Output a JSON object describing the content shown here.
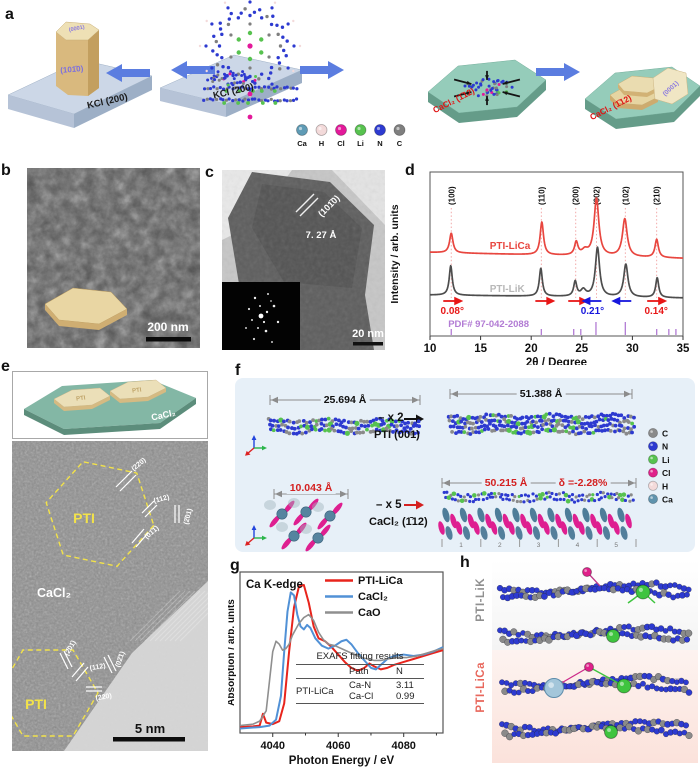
{
  "panels": {
    "a": {
      "label": "a",
      "prism_top_face": "(0001)",
      "prism_side_face": "(101̄0)",
      "substrate1_label": "KCl (200)",
      "substrate2_label": "KCl (200)",
      "hex1_label": "CaCl₂ (1̄12)",
      "hex2_label": "CaCl₂ (1̄12)",
      "plate_face_label": "(0001)",
      "legend": [
        {
          "symbol": "Ca",
          "color": "#5f9bb5"
        },
        {
          "symbol": "H",
          "color": "#f3dada"
        },
        {
          "symbol": "Cl",
          "color": "#e3199a"
        },
        {
          "symbol": "Li",
          "color": "#57c24f"
        },
        {
          "symbol": "N",
          "color": "#2d3ad0"
        },
        {
          "symbol": "C",
          "color": "#7f7f7f"
        }
      ]
    },
    "b": {
      "label": "b",
      "scalebar": "200 nm"
    },
    "c": {
      "label": "c",
      "plane": "(101̄0)",
      "spacing": "7. 27 Å",
      "scalebar": "20 nm"
    },
    "d": {
      "label": "d"
    },
    "e": {
      "label": "e",
      "inset_substrate": "CaCl₂",
      "inset_chip": "PTI",
      "region_top": "PTI",
      "region_mid": "CaCl₂",
      "region_bottom": "PTI",
      "planes_top": [
        "(220)",
        "(112)",
        "(2̄01)",
        "(01̄1̄)"
      ],
      "planes_bottom": [
        "(2̄01̄)",
        "(112)",
        "(02̄1)",
        "(220)"
      ],
      "scalebar": "5 nm"
    },
    "f": {
      "label": "f",
      "dim_pti_small": "25.694 Å",
      "pti_multiply": "– x 2",
      "pti_plane": "PTI (001)",
      "dim_pti_large": "51.388 Å",
      "dim_cacl2_small": "10.043 Å",
      "cacl2_multiply": "– x 5",
      "cacl2_plane": "CaCl₂ (1̄12)",
      "dim_cacl2_large": "50.215 Å",
      "mismatch": "δ =-2.28%",
      "unit_numbers": [
        "1",
        "2",
        "3",
        "4",
        "5"
      ],
      "legend": [
        {
          "symbol": "C",
          "color": "#8a8a8a"
        },
        {
          "symbol": "N",
          "color": "#2d3ad0"
        },
        {
          "symbol": "Li",
          "color": "#57c24f"
        },
        {
          "symbol": "Cl",
          "color": "#e0218a"
        },
        {
          "symbol": "H",
          "color": "#f3dada"
        },
        {
          "symbol": "Ca",
          "color": "#5f93ad"
        }
      ]
    },
    "g": {
      "label": "g"
    },
    "h": {
      "label": "h",
      "structure_top": "PTI-LiK",
      "structure_bottom": "PTI-LiCa"
    }
  },
  "chart_data": [
    {
      "id": "xrd-pattern",
      "type": "line",
      "title": "",
      "xlabel": "2θ / Degree",
      "ylabel": "Intensity / arb. units",
      "xlim": [
        10,
        35
      ],
      "xticks": [
        10,
        15,
        20,
        25,
        30,
        35
      ],
      "grid": false,
      "legend_position": "on-curve",
      "peak_labels": [
        "(100)",
        "(110)",
        "(200)",
        "(002)",
        "(102)",
        "(210)"
      ],
      "peak_positions": [
        12.1,
        21.0,
        24.4,
        26.45,
        29.3,
        32.4
      ],
      "series": [
        {
          "name": "PTI-LiCa",
          "color": "#e8463f",
          "label_color": "#e8463f",
          "baseline": 0.51,
          "peaks": [
            {
              "x": 12.1,
              "h": 0.12,
              "w": 0.2
            },
            {
              "x": 21.05,
              "h": 0.2,
              "w": 0.2
            },
            {
              "x": 24.45,
              "h": 0.08,
              "w": 0.2
            },
            {
              "x": 25.3,
              "h": 0.03,
              "w": 0.35
            },
            {
              "x": 26.45,
              "h": 0.35,
              "w": 0.28
            },
            {
              "x": 29.25,
              "h": 0.23,
              "w": 0.28
            },
            {
              "x": 32.4,
              "h": 0.11,
              "w": 0.2
            }
          ]
        },
        {
          "name": "PTI-LiK",
          "color": "#4d4d4d",
          "label_color": "#b8b8b8",
          "baseline": 0.25,
          "peaks": [
            {
              "x": 12.05,
              "h": 0.18,
              "w": 0.18
            },
            {
              "x": 20.95,
              "h": 0.17,
              "w": 0.18
            },
            {
              "x": 24.35,
              "h": 0.09,
              "w": 0.18
            },
            {
              "x": 25.15,
              "h": 0.04,
              "w": 0.3
            },
            {
              "x": 26.55,
              "h": 0.3,
              "w": 0.25
            },
            {
              "x": 29.35,
              "h": 0.2,
              "w": 0.25
            },
            {
              "x": 32.45,
              "h": 0.12,
              "w": 0.18
            }
          ]
        }
      ],
      "shifts": [
        {
          "x": 12.2,
          "dir": "right",
          "color": "#e81616",
          "label": "0.08°"
        },
        {
          "x": 21.3,
          "dir": "right",
          "color": "#e81616",
          "label": ""
        },
        {
          "x": 24.55,
          "dir": "right",
          "color": "#e81616",
          "label": ""
        },
        {
          "x": 26.05,
          "dir": "left",
          "color": "#1717dd",
          "label": "0.21°"
        },
        {
          "x": 29.0,
          "dir": "left",
          "color": "#1717dd",
          "label": ""
        },
        {
          "x": 32.35,
          "dir": "right",
          "color": "#e81616",
          "label": "0.14°"
        }
      ],
      "reference": {
        "label": "PDF# 97-042-2088",
        "color": "#b27bd4",
        "ticks": [
          12.1,
          21.0,
          24.2,
          24.9,
          26.4,
          29.3,
          32.4,
          33.6,
          34.3
        ],
        "tall_ticks": [
          26.4,
          29.3
        ]
      }
    },
    {
      "id": "xas-ca-k-edge",
      "type": "line",
      "title": "Ca K-edge",
      "xlabel": "Photon Energy / eV",
      "ylabel": "Absorption / arb. units",
      "xlim": [
        4030,
        4092
      ],
      "xticks": [
        4040,
        4060,
        4080
      ],
      "legend_position": "top-right",
      "series": [
        {
          "name": "PTI-LiCa",
          "color": "#e8241c",
          "points": [
            [
              4030,
              0.04
            ],
            [
              4034,
              0.045
            ],
            [
              4036,
              0.05
            ],
            [
              4037,
              0.13
            ],
            [
              4038,
              0.07
            ],
            [
              4040,
              0.06
            ],
            [
              4042,
              0.08
            ],
            [
              4043.5,
              0.2
            ],
            [
              4045,
              0.55
            ],
            [
              4046.5,
              0.85
            ],
            [
              4048,
              0.99
            ],
            [
              4049.5,
              1.0
            ],
            [
              4051,
              0.88
            ],
            [
              4052.5,
              0.72
            ],
            [
              4054,
              0.64
            ],
            [
              4056,
              0.62
            ],
            [
              4058,
              0.58
            ],
            [
              4060,
              0.53
            ],
            [
              4062,
              0.48
            ],
            [
              4064,
              0.44
            ],
            [
              4066,
              0.42
            ],
            [
              4068,
              0.44
            ],
            [
              4069.5,
              0.47
            ],
            [
              4071,
              0.45
            ],
            [
              4073,
              0.43
            ],
            [
              4075,
              0.44
            ],
            [
              4077,
              0.46
            ],
            [
              4080,
              0.48
            ],
            [
              4083,
              0.5
            ],
            [
              4086,
              0.52
            ],
            [
              4089,
              0.54
            ],
            [
              4092,
              0.56
            ]
          ]
        },
        {
          "name": "CaCl₂",
          "color": "#5191d6",
          "points": [
            [
              4030,
              0.03
            ],
            [
              4036,
              0.04
            ],
            [
              4039,
              0.05
            ],
            [
              4041,
              0.09
            ],
            [
              4042.5,
              0.25
            ],
            [
              4043.5,
              0.55
            ],
            [
              4044.5,
              0.82
            ],
            [
              4045.5,
              0.95
            ],
            [
              4046.5,
              0.93
            ],
            [
              4047.5,
              0.8
            ],
            [
              4048.5,
              0.72
            ],
            [
              4049.5,
              0.7
            ],
            [
              4050.5,
              0.73
            ],
            [
              4051.5,
              0.71
            ],
            [
              4053,
              0.64
            ],
            [
              4055,
              0.59
            ],
            [
              4057,
              0.57
            ],
            [
              4059,
              0.59
            ],
            [
              4061,
              0.62
            ],
            [
              4062.5,
              0.63
            ],
            [
              4064,
              0.6
            ],
            [
              4066,
              0.54
            ],
            [
              4068,
              0.49
            ],
            [
              4070,
              0.44
            ],
            [
              4071.5,
              0.43
            ],
            [
              4073,
              0.46
            ],
            [
              4075,
              0.5
            ],
            [
              4077,
              0.52
            ],
            [
              4080,
              0.53
            ],
            [
              4083,
              0.52
            ],
            [
              4086,
              0.53
            ],
            [
              4089,
              0.55
            ],
            [
              4092,
              0.58
            ]
          ]
        },
        {
          "name": "CaO",
          "color": "#8f8f8f",
          "points": [
            [
              4030,
              0.05
            ],
            [
              4034,
              0.06
            ],
            [
              4036,
              0.08
            ],
            [
              4038,
              0.15
            ],
            [
              4039,
              0.35
            ],
            [
              4040,
              0.55
            ],
            [
              4041,
              0.62
            ],
            [
              4042,
              0.6
            ],
            [
              4043,
              0.56
            ],
            [
              4044,
              0.57
            ],
            [
              4045,
              0.6
            ],
            [
              4046,
              0.66
            ],
            [
              4047,
              0.7
            ],
            [
              4048,
              0.74
            ],
            [
              4049.5,
              0.78
            ],
            [
              4051,
              0.8
            ],
            [
              4052.5,
              0.76
            ],
            [
              4054,
              0.68
            ],
            [
              4055.5,
              0.63
            ],
            [
              4057,
              0.6
            ],
            [
              4059,
              0.59
            ],
            [
              4061,
              0.57
            ],
            [
              4063,
              0.55
            ],
            [
              4065,
              0.53
            ],
            [
              4067,
              0.51
            ],
            [
              4069,
              0.5
            ],
            [
              4071,
              0.49
            ],
            [
              4073,
              0.49
            ],
            [
              4075,
              0.5
            ],
            [
              4078,
              0.51
            ],
            [
              4081,
              0.51
            ],
            [
              4084,
              0.52
            ],
            [
              4087,
              0.54
            ],
            [
              4090,
              0.56
            ],
            [
              4092,
              0.57
            ]
          ]
        }
      ],
      "table": {
        "title": "EXAFS fitting results",
        "col1": "Path",
        "col2": "N",
        "row_label": "PTI-LiCa",
        "rows": [
          {
            "path": "Ca-N",
            "n": "3.11"
          },
          {
            "path": "Ca-Cl",
            "n": "0.99"
          }
        ]
      }
    }
  ]
}
